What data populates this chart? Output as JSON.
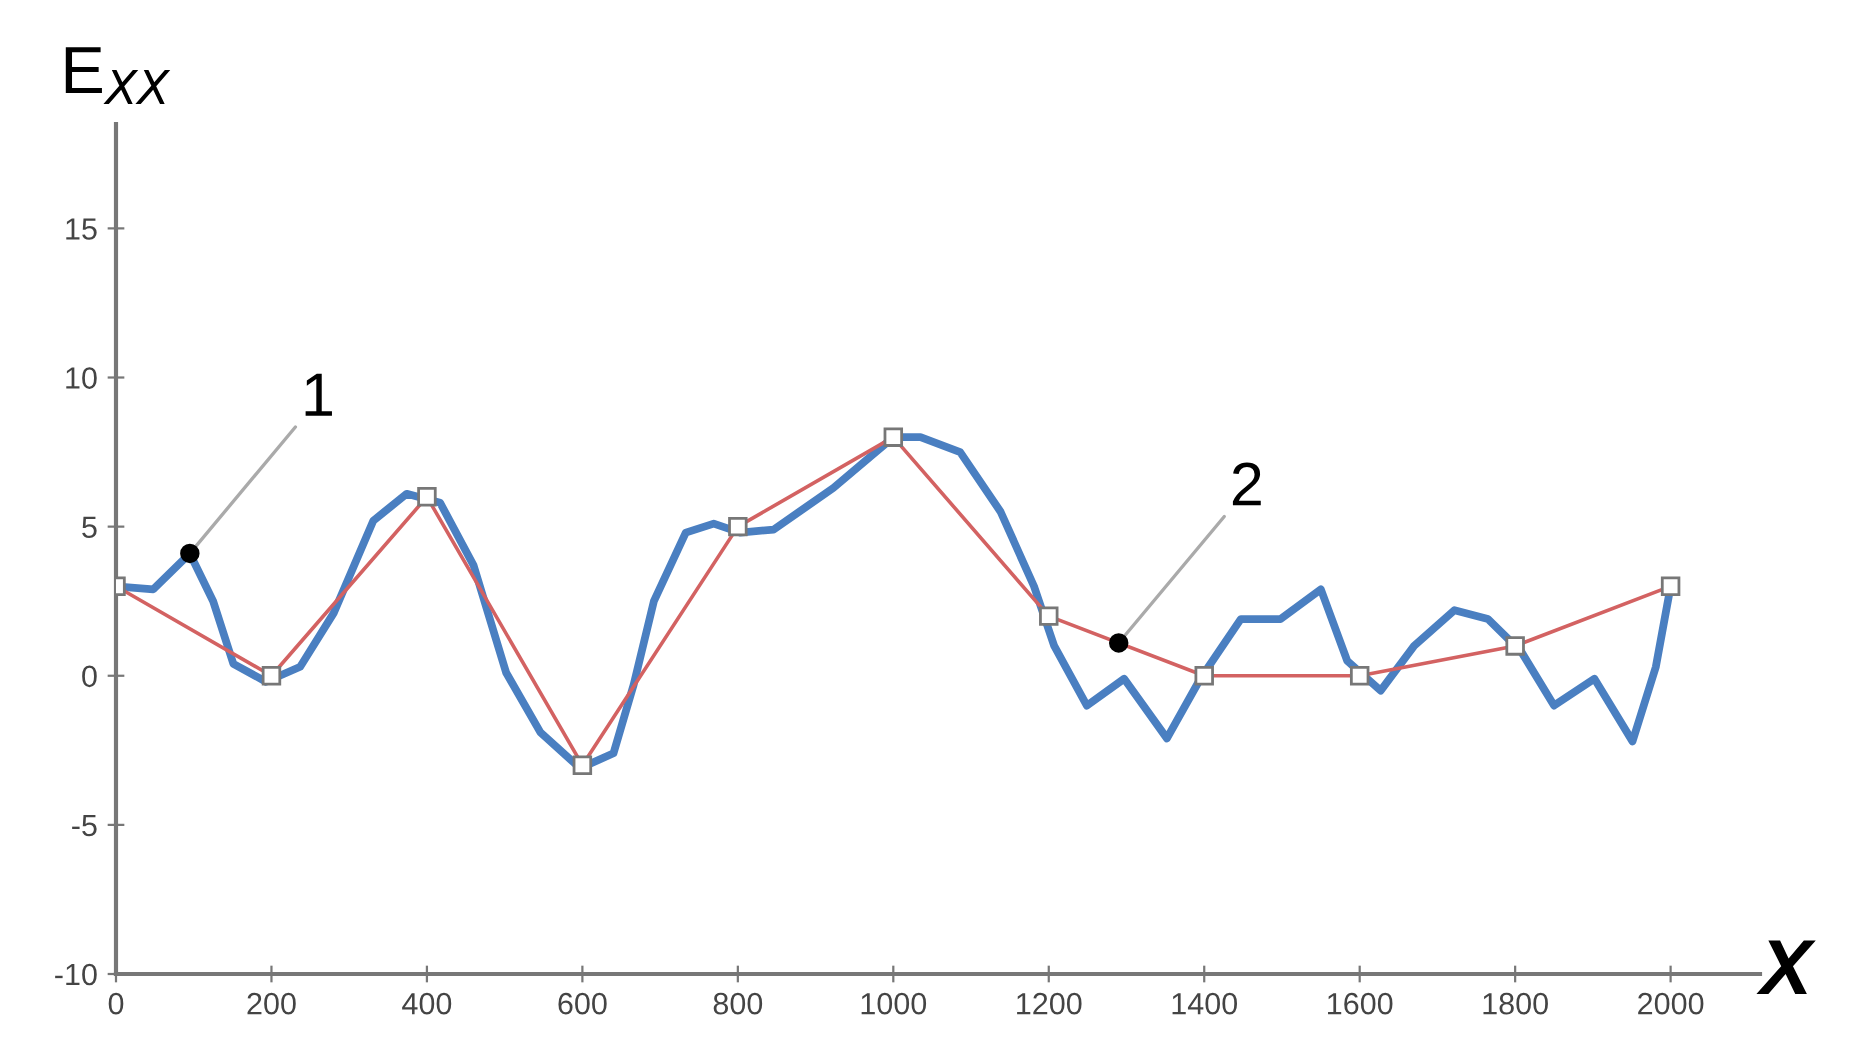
{
  "chart_data": {
    "type": "line",
    "xlabel": "X",
    "ylabel": "E$_{XX}$",
    "xlim": [
      0,
      2115
    ],
    "ylim": [
      -10,
      18.5
    ],
    "xticks": [
      0,
      200,
      400,
      600,
      800,
      1000,
      1200,
      1400,
      1600,
      1800,
      2000
    ],
    "yticks": [
      -10,
      -5,
      0,
      5,
      10,
      15
    ],
    "grid": false,
    "legend": false,
    "line_style": "solid",
    "series": [
      {
        "color": "#4a7fc1",
        "marker": "none",
        "x": [
          0,
          48,
          95,
          125,
          151,
          193,
          237,
          280,
          331,
          374,
          417,
          460,
          502,
          546,
          597,
          640,
          666,
          692,
          733,
          769,
          803,
          846,
          923,
          1000,
          1035,
          1086,
          1138,
          1181,
          1207,
          1249,
          1297,
          1352,
          1395,
          1447,
          1498,
          1550,
          1584,
          1627,
          1670,
          1722,
          1765,
          1808,
          1850,
          1902,
          1951,
          1981,
          2000
        ],
        "values": [
          3,
          2.9,
          4.1,
          2.5,
          0.4,
          -0.2,
          0.3,
          2.1,
          5.2,
          6.1,
          5.8,
          3.7,
          0.1,
          -1.9,
          -3.1,
          -2.6,
          -0.3,
          2.5,
          4.8,
          5.1,
          4.8,
          4.9,
          6.3,
          8,
          8,
          7.5,
          5.5,
          3,
          1,
          -1,
          -0.1,
          -2.1,
          -0.1,
          1.9,
          1.9,
          2.9,
          0.5,
          -0.5,
          1,
          2.2,
          1.9,
          0.8,
          -1,
          -0.1,
          -2.2,
          0.3,
          3
        ]
      },
      {
        "color": "#d36262",
        "marker": "square",
        "x": [
          0,
          200,
          400,
          600,
          800,
          1000,
          1200,
          1400,
          1600,
          1800,
          2000
        ],
        "values": [
          3,
          0,
          6,
          -3,
          5,
          8,
          2,
          0,
          0,
          1,
          3
        ]
      }
    ],
    "annotations": [
      {
        "text": "1",
        "x": 95,
        "y": 4.1
      },
      {
        "text": "2",
        "x": 1290,
        "y": 1.1
      }
    ]
  }
}
